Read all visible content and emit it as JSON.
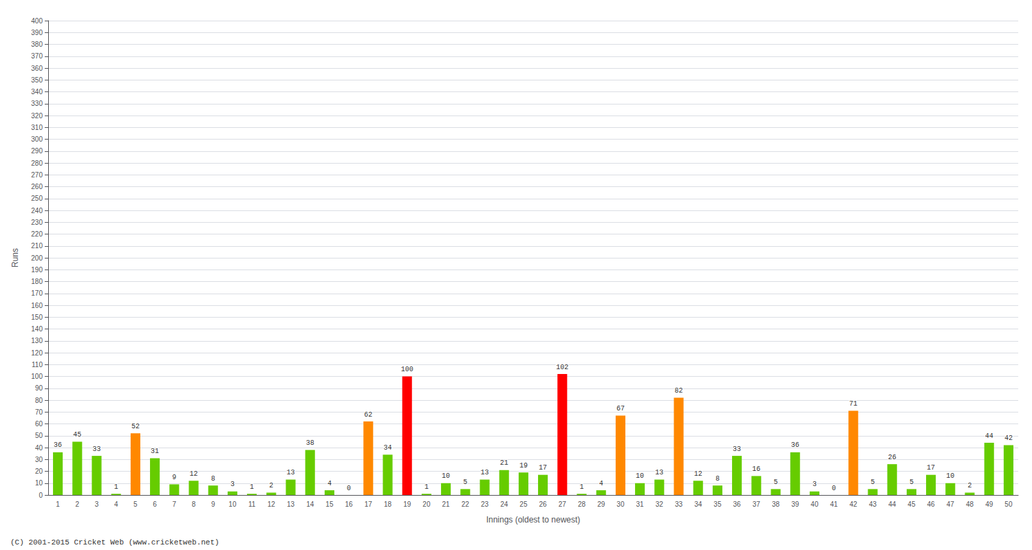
{
  "chart_data": {
    "type": "bar",
    "categories": [
      "1",
      "2",
      "3",
      "4",
      "5",
      "6",
      "7",
      "8",
      "9",
      "10",
      "11",
      "12",
      "13",
      "14",
      "15",
      "16",
      "17",
      "18",
      "19",
      "20",
      "21",
      "22",
      "23",
      "24",
      "25",
      "26",
      "27",
      "28",
      "29",
      "30",
      "31",
      "32",
      "33",
      "34",
      "35",
      "36",
      "37",
      "38",
      "39",
      "40",
      "41",
      "42",
      "43",
      "44",
      "45",
      "46",
      "47",
      "48",
      "49",
      "50"
    ],
    "values": [
      36,
      45,
      33,
      1,
      52,
      31,
      9,
      12,
      8,
      3,
      1,
      2,
      13,
      38,
      4,
      0,
      62,
      34,
      100,
      1,
      10,
      5,
      13,
      21,
      19,
      17,
      102,
      1,
      4,
      67,
      10,
      13,
      82,
      12,
      8,
      33,
      16,
      5,
      36,
      3,
      0,
      71,
      5,
      26,
      5,
      17,
      10,
      2,
      44,
      42
    ],
    "colors": [
      "#66cc00",
      "#66cc00",
      "#66cc00",
      "#66cc00",
      "#ff8800",
      "#66cc00",
      "#66cc00",
      "#66cc00",
      "#66cc00",
      "#66cc00",
      "#66cc00",
      "#66cc00",
      "#66cc00",
      "#66cc00",
      "#66cc00",
      "#66cc00",
      "#ff8800",
      "#66cc00",
      "#ff0000",
      "#66cc00",
      "#66cc00",
      "#66cc00",
      "#66cc00",
      "#66cc00",
      "#66cc00",
      "#66cc00",
      "#ff0000",
      "#66cc00",
      "#66cc00",
      "#ff8800",
      "#66cc00",
      "#66cc00",
      "#ff8800",
      "#66cc00",
      "#66cc00",
      "#66cc00",
      "#66cc00",
      "#66cc00",
      "#66cc00",
      "#66cc00",
      "#66cc00",
      "#ff8800",
      "#66cc00",
      "#66cc00",
      "#66cc00",
      "#66cc00",
      "#66cc00",
      "#66cc00",
      "#66cc00",
      "#66cc00"
    ],
    "xlabel": "Innings (oldest to newest)",
    "ylabel": "Runs",
    "ylim": [
      0,
      400
    ],
    "yticks": [
      0,
      10,
      20,
      30,
      40,
      50,
      60,
      70,
      80,
      90,
      100,
      110,
      120,
      130,
      140,
      150,
      160,
      170,
      180,
      190,
      200,
      210,
      220,
      230,
      240,
      250,
      260,
      270,
      280,
      290,
      300,
      310,
      320,
      330,
      340,
      350,
      360,
      370,
      380,
      390,
      400
    ],
    "grid": true,
    "data_labels": true,
    "annotation": "(C) 2001-2015 Cricket Web (www.cricketweb.net)"
  }
}
